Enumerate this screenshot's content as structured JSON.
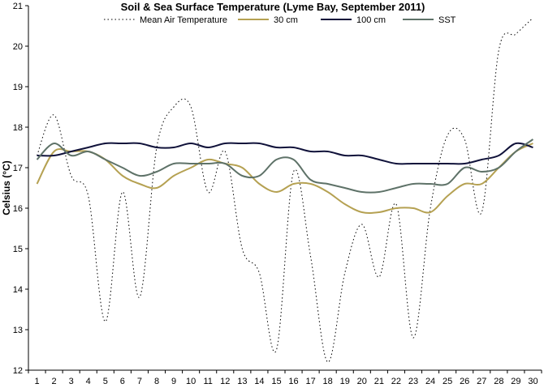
{
  "chart_data": {
    "type": "line",
    "title": "Soil & Sea Surface Temperature (Lyme Bay, September 2011)",
    "xlabel": "",
    "ylabel": "Celsius (°C)",
    "ylim": [
      12,
      21
    ],
    "yticks": [
      12,
      13,
      14,
      15,
      16,
      17,
      18,
      19,
      20,
      21
    ],
    "x": [
      1,
      2,
      3,
      4,
      5,
      6,
      7,
      8,
      9,
      10,
      11,
      12,
      13,
      14,
      15,
      16,
      17,
      18,
      19,
      20,
      21,
      22,
      23,
      24,
      25,
      26,
      27,
      28,
      29,
      30
    ],
    "grid": false,
    "legend_position": "top",
    "series": [
      {
        "name": "Mean Air Temperature",
        "color": "#000000",
        "style": "dotted",
        "values": [
          17.3,
          18.3,
          16.8,
          16.3,
          13.2,
          16.4,
          13.8,
          17.5,
          18.5,
          18.5,
          16.4,
          17.4,
          15.0,
          14.4,
          12.5,
          16.9,
          14.8,
          12.2,
          14.4,
          15.6,
          14.3,
          16.1,
          12.8,
          16.0,
          17.8,
          17.7,
          15.9,
          19.9,
          20.3,
          20.7
        ]
      },
      {
        "name": "30 cm",
        "color": "#B5A152",
        "style": "solid",
        "values": [
          16.6,
          17.4,
          17.4,
          17.4,
          17.2,
          16.8,
          16.6,
          16.5,
          16.8,
          17.0,
          17.2,
          17.1,
          17.0,
          16.6,
          16.4,
          16.6,
          16.6,
          16.4,
          16.1,
          15.9,
          15.9,
          16.0,
          16.0,
          15.9,
          16.3,
          16.6,
          16.6,
          17.0,
          17.4,
          17.6
        ]
      },
      {
        "name": "100 cm",
        "color": "#10123A",
        "style": "solid",
        "values": [
          17.3,
          17.3,
          17.4,
          17.5,
          17.6,
          17.6,
          17.6,
          17.5,
          17.5,
          17.6,
          17.5,
          17.6,
          17.6,
          17.6,
          17.5,
          17.5,
          17.4,
          17.4,
          17.3,
          17.3,
          17.2,
          17.1,
          17.1,
          17.1,
          17.1,
          17.1,
          17.2,
          17.3,
          17.6,
          17.5
        ]
      },
      {
        "name": "SST",
        "color": "#5E7268",
        "style": "solid",
        "values": [
          17.2,
          17.6,
          17.3,
          17.4,
          17.2,
          17.0,
          16.8,
          16.9,
          17.1,
          17.1,
          17.1,
          17.1,
          16.8,
          16.8,
          17.2,
          17.2,
          16.7,
          16.6,
          16.5,
          16.4,
          16.4,
          16.5,
          16.6,
          16.6,
          16.6,
          17.0,
          16.9,
          17.0,
          17.4,
          17.7
        ]
      }
    ]
  }
}
